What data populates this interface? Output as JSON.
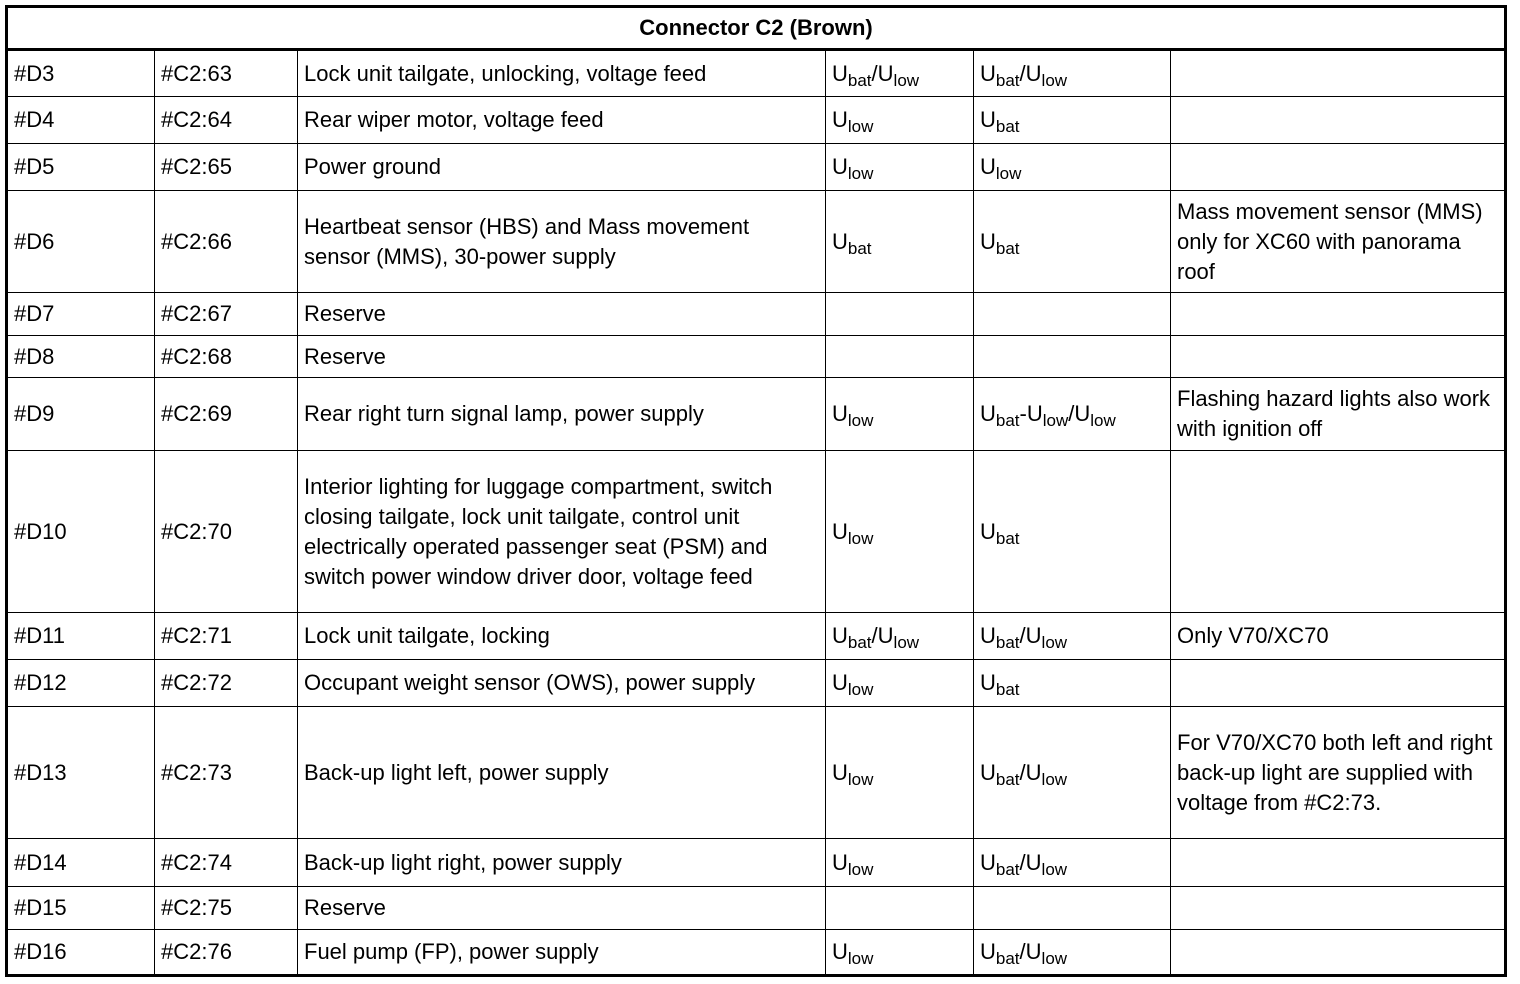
{
  "title": "Connector C2 (Brown)",
  "rows": [
    {
      "id": "#D3",
      "pin": "#C2:63",
      "desc": "Lock unit tailgate, unlocking, voltage feed",
      "v1": "Ubat/Ulow",
      "v2": "Ubat/Ulow",
      "note": ""
    },
    {
      "id": "#D4",
      "pin": "#C2:64",
      "desc": "Rear wiper motor, voltage feed",
      "v1": "Ulow",
      "v2": "Ubat",
      "note": ""
    },
    {
      "id": "#D5",
      "pin": "#C2:65",
      "desc": "Power ground",
      "v1": "Ulow",
      "v2": "Ulow",
      "note": ""
    },
    {
      "id": "#D6",
      "pin": "#C2:66",
      "desc": "Heartbeat sensor (HBS) and Mass movement sensor (MMS), 30-power supply",
      "v1": "Ubat",
      "v2": "Ubat",
      "note": "Mass movement sensor (MMS) only for XC60 with panorama roof"
    },
    {
      "id": "#D7",
      "pin": "#C2:67",
      "desc": "Reserve",
      "v1": "",
      "v2": "",
      "note": ""
    },
    {
      "id": "#D8",
      "pin": "#C2:68",
      "desc": "Reserve",
      "v1": "",
      "v2": "",
      "note": ""
    },
    {
      "id": "#D9",
      "pin": "#C2:69",
      "desc": "Rear right turn signal lamp, power supply",
      "v1": "Ulow",
      "v2": "Ubat-Ulow/Ulow",
      "note": "Flashing hazard lights also work with ignition off"
    },
    {
      "id": "#D10",
      "pin": "#C2:70",
      "desc": "Interior lighting for luggage compartment, switch closing tailgate, lock unit tailgate, control unit electrically operated passenger seat (PSM) and switch power window driver door, voltage feed",
      "v1": "Ulow",
      "v2": "Ubat",
      "note": ""
    },
    {
      "id": "#D11",
      "pin": "#C2:71",
      "desc": "Lock unit tailgate, locking",
      "v1": "Ubat/Ulow",
      "v2": "Ubat/Ulow",
      "note": "Only V70/XC70"
    },
    {
      "id": "#D12",
      "pin": "#C2:72",
      "desc": "Occupant weight sensor (OWS), power supply",
      "v1": "Ulow",
      "v2": "Ubat",
      "note": ""
    },
    {
      "id": "#D13",
      "pin": "#C2:73",
      "desc": "Back-up light left, power supply",
      "v1": "Ulow",
      "v2": "Ubat/Ulow",
      "note": "For V70/XC70 both left and right back-up light are supplied with voltage from #C2:73."
    },
    {
      "id": "#D14",
      "pin": "#C2:74",
      "desc": "Back-up light right, power supply",
      "v1": "Ulow",
      "v2": "Ubat/Ulow",
      "note": ""
    },
    {
      "id": "#D15",
      "pin": "#C2:75",
      "desc": "Reserve",
      "v1": "",
      "v2": "",
      "note": ""
    },
    {
      "id": "#D16",
      "pin": "#C2:76",
      "desc": "Fuel pump (FP), power supply",
      "v1": "Ulow",
      "v2": "Ubat/Ulow",
      "note": ""
    }
  ]
}
